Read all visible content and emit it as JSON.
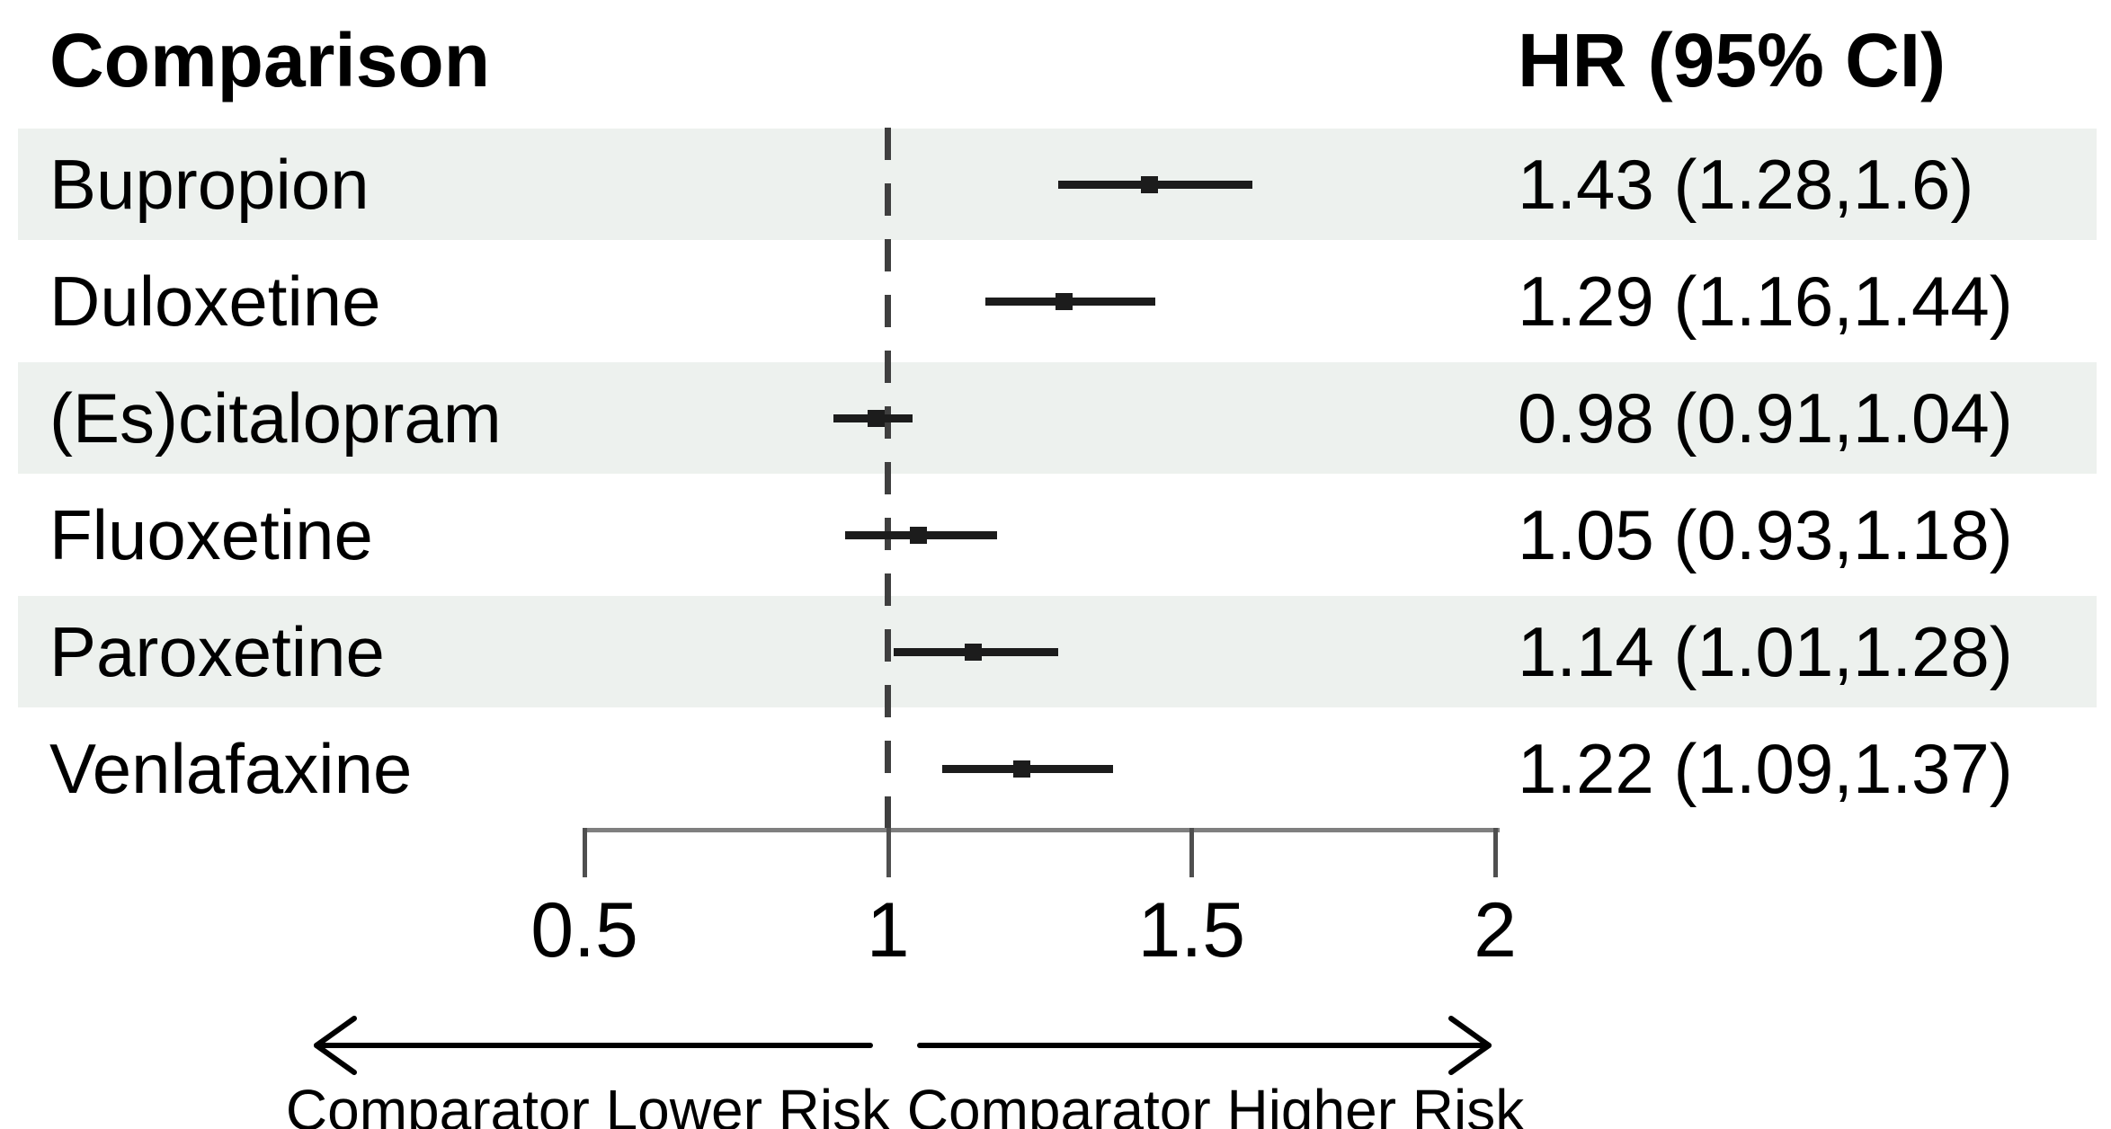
{
  "chart_data": {
    "type": "scatter",
    "subtype": "forest-plot",
    "columns": {
      "left_header": "Comparison",
      "right_header": "HR (95% CI)"
    },
    "rows": [
      {
        "label": "Bupropion",
        "hr": 1.43,
        "ci_low": 1.28,
        "ci_high": 1.6,
        "display": "1.43 (1.28,1.6)",
        "striped": true
      },
      {
        "label": "Duloxetine",
        "hr": 1.29,
        "ci_low": 1.16,
        "ci_high": 1.44,
        "display": "1.29 (1.16,1.44)",
        "striped": false
      },
      {
        "label": "(Es)citalopram",
        "hr": 0.98,
        "ci_low": 0.91,
        "ci_high": 1.04,
        "display": "0.98 (0.91,1.04)",
        "striped": true
      },
      {
        "label": "Fluoxetine",
        "hr": 1.05,
        "ci_low": 0.93,
        "ci_high": 1.18,
        "display": "1.05 (0.93,1.18)",
        "striped": false
      },
      {
        "label": "Paroxetine",
        "hr": 1.14,
        "ci_low": 1.01,
        "ci_high": 1.28,
        "display": "1.14 (1.01,1.28)",
        "striped": true
      },
      {
        "label": "Venlafaxine",
        "hr": 1.22,
        "ci_low": 1.09,
        "ci_high": 1.37,
        "display": "1.22 (1.09,1.37)",
        "striped": false
      }
    ],
    "x_axis": {
      "scale": "linear",
      "range": [
        0.5,
        2
      ],
      "tick_values": [
        0.5,
        1,
        1.5,
        2
      ],
      "tick_labels": [
        "0.5",
        "1",
        "1.5",
        "2"
      ],
      "reference_line": 1,
      "grid": false
    },
    "direction_labels": {
      "left": "Comparator Lower Risk",
      "right": "Comparator Higher Risk"
    }
  },
  "colors": {
    "background": "#ffffff",
    "stripe_bg": "#edf1ee",
    "text": "#000000",
    "whisker": "#1c1c1c",
    "axis_line": "#7f7f7f",
    "tick": "#4f4f4f",
    "reference_dash": "#3f3f3f"
  }
}
